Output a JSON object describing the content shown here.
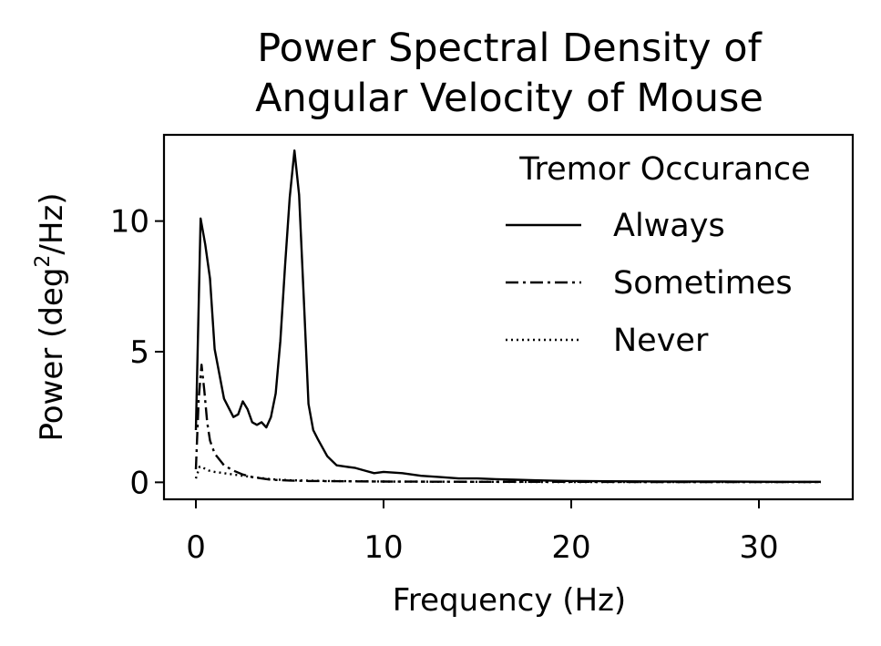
{
  "chart_data": {
    "type": "line",
    "title_lines": [
      "Power Spectral Density of",
      "Angular Velocity of Mouse"
    ],
    "xlabel": "Frequency (Hz)",
    "ylabel": {
      "prefix": "Power (deg",
      "sup": "2",
      "suffix": "/Hz)"
    },
    "xlim": [
      -1.7,
      35
    ],
    "ylim": [
      -0.65,
      13.3
    ],
    "xticks": [
      0,
      10,
      20,
      30
    ],
    "yticks": [
      0,
      5,
      10
    ],
    "legend": {
      "title": "Tremor Occurance",
      "placement": "top-right"
    },
    "series": [
      {
        "name": "Always",
        "style": "solid",
        "x": [
          0,
          0.25,
          0.5,
          0.75,
          1.0,
          1.5,
          2.0,
          2.25,
          2.5,
          2.75,
          3.0,
          3.25,
          3.5,
          3.75,
          4.0,
          4.25,
          4.5,
          4.75,
          5.0,
          5.25,
          5.5,
          5.75,
          6.0,
          6.25,
          6.5,
          7.0,
          7.5,
          8.0,
          8.5,
          9.0,
          9.5,
          10,
          11,
          12,
          13,
          14,
          15,
          16,
          17,
          18,
          19,
          20,
          22,
          25,
          28,
          31,
          33.3
        ],
        "y": [
          2.0,
          10.1,
          9.1,
          7.8,
          5.1,
          3.2,
          2.5,
          2.6,
          3.1,
          2.8,
          2.3,
          2.2,
          2.3,
          2.1,
          2.5,
          3.4,
          5.4,
          8.3,
          10.9,
          12.7,
          11.0,
          7.0,
          3.0,
          2.0,
          1.65,
          1.0,
          0.65,
          0.6,
          0.55,
          0.45,
          0.35,
          0.4,
          0.35,
          0.25,
          0.2,
          0.15,
          0.15,
          0.12,
          0.1,
          0.08,
          0.06,
          0.05,
          0.04,
          0.03,
          0.03,
          0.02,
          0.02
        ]
      },
      {
        "name": "Sometimes",
        "style": "dashdot",
        "x": [
          0,
          0.15,
          0.3,
          0.45,
          0.6,
          0.75,
          1.0,
          1.5,
          2.0,
          2.5,
          3.0,
          3.5,
          4.0,
          5.0,
          6.0,
          8.0,
          10,
          15,
          20,
          25,
          30,
          33.3
        ],
        "y": [
          0.5,
          3.2,
          4.5,
          3.5,
          2.3,
          1.6,
          1.1,
          0.65,
          0.45,
          0.3,
          0.2,
          0.15,
          0.1,
          0.07,
          0.05,
          0.04,
          0.03,
          0.02,
          0.02,
          0.01,
          0.01,
          0.01
        ]
      },
      {
        "name": "Never",
        "style": "dotted",
        "x": [
          0,
          0.2,
          0.4,
          0.7,
          1.0,
          1.5,
          2.0,
          2.5,
          3.0,
          4.0,
          5.0,
          7.0,
          10,
          15,
          20,
          25,
          30,
          33.3
        ],
        "y": [
          0.15,
          0.6,
          0.55,
          0.45,
          0.4,
          0.35,
          0.3,
          0.25,
          0.2,
          0.12,
          0.08,
          0.05,
          0.03,
          0.02,
          0.01,
          0.01,
          0.01,
          0.01
        ]
      }
    ]
  }
}
